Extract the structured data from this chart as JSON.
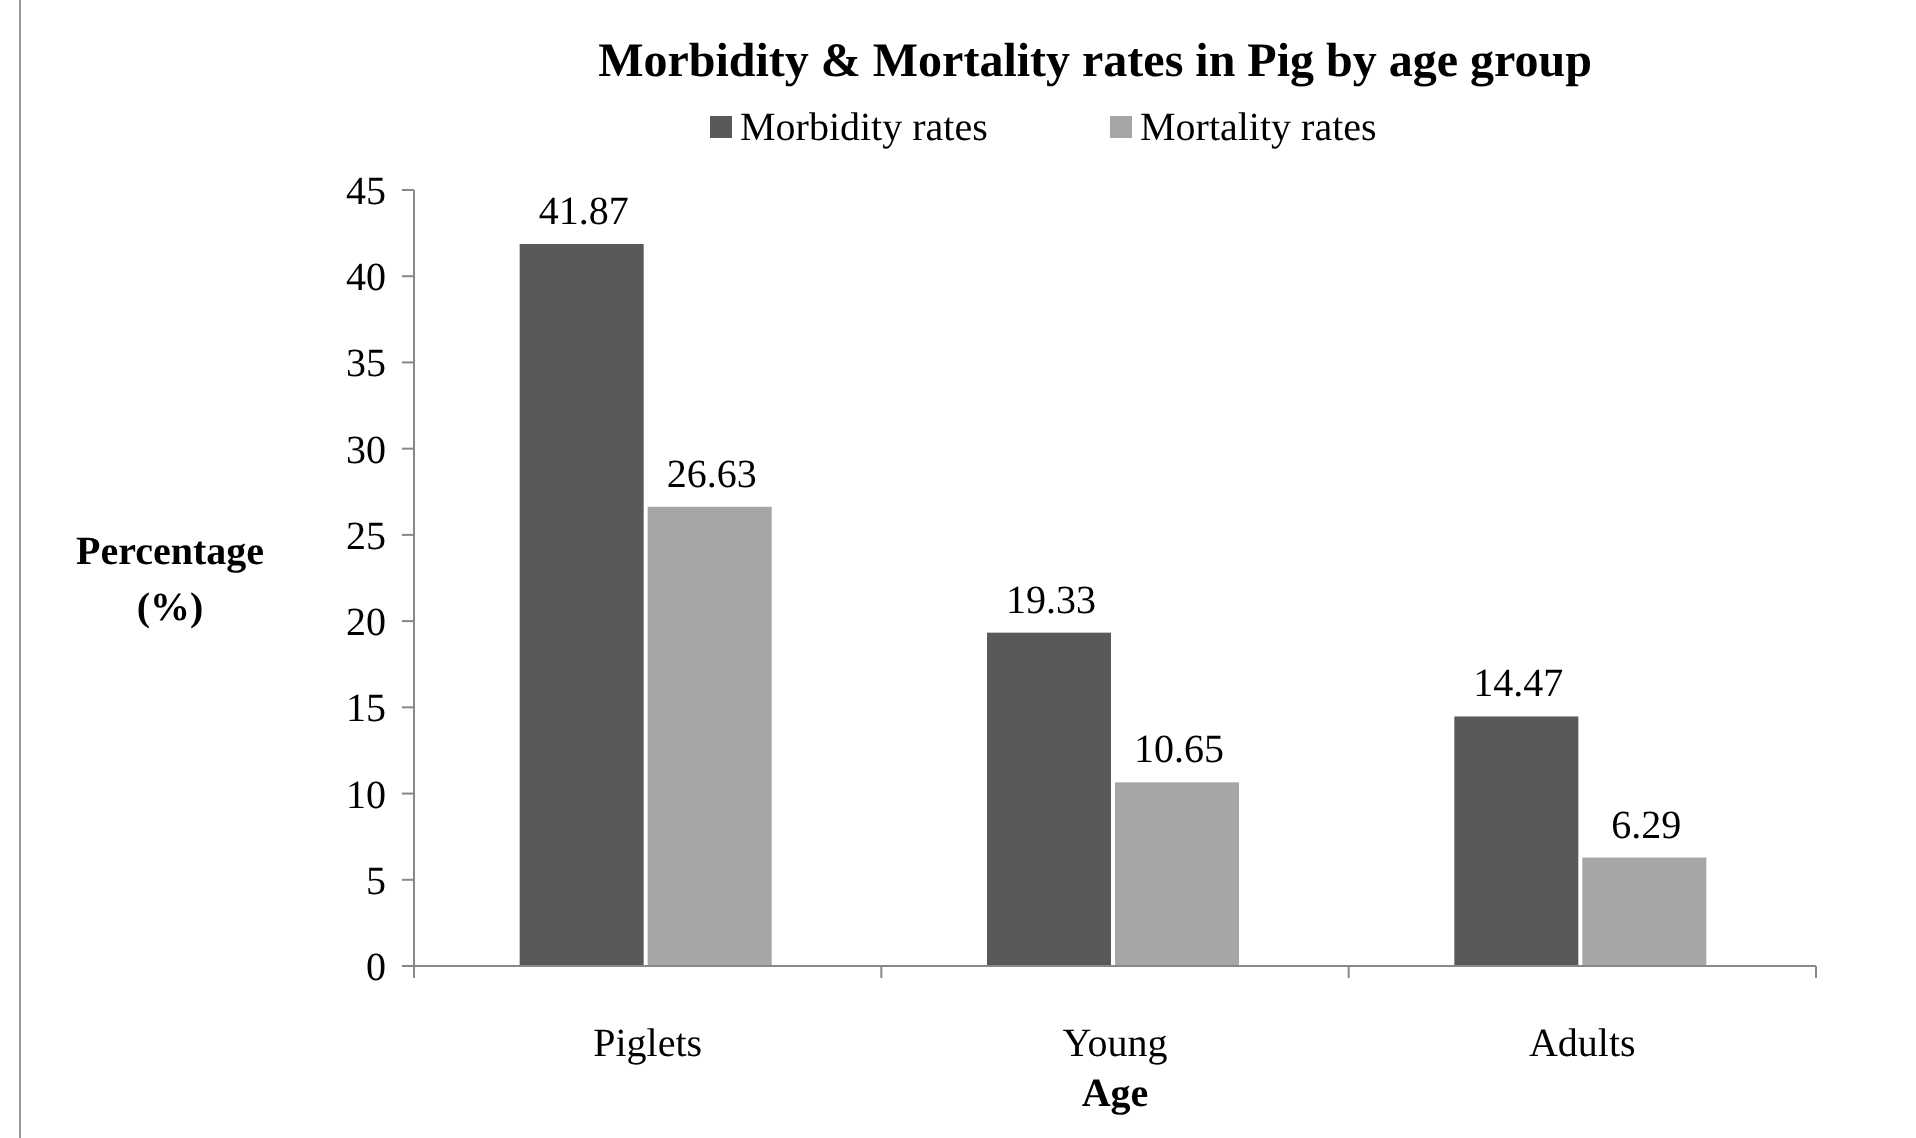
{
  "chart_data": {
    "type": "bar",
    "title": "Morbidity & Mortality rates in Pig by age group",
    "xlabel": "Age",
    "ylabel": "Percentage (%)",
    "categories": [
      "Piglets",
      "Young",
      "Adults"
    ],
    "series": [
      {
        "name": "Morbidity rates",
        "color": "#595959",
        "values": [
          41.87,
          19.33,
          14.47
        ]
      },
      {
        "name": "Mortality rates",
        "color": "#a6a6a6",
        "values": [
          26.63,
          10.65,
          6.29
        ]
      }
    ],
    "ylim": [
      0,
      45
    ],
    "yticks": [
      0,
      5,
      10,
      15,
      20,
      25,
      30,
      35,
      40,
      45
    ],
    "grid": false,
    "legend": "top",
    "data_labels": true
  }
}
